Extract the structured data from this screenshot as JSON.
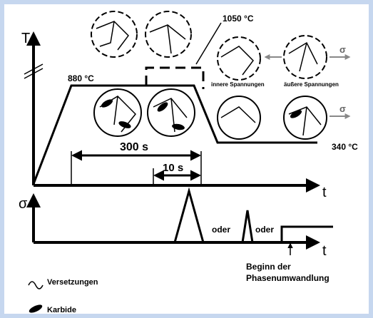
{
  "axes": {
    "temperature": "T",
    "time": "t",
    "stress": "σ",
    "time2": "t"
  },
  "temperatures": {
    "austenitizing": "880 °C",
    "peak": "1050 °C",
    "quench": "340 °C"
  },
  "durations": {
    "long": "300 s",
    "short": "10 s"
  },
  "stresses": {
    "inner": "innere Spannungen",
    "outer": "äußere Spannungen",
    "arrow_top": "σ",
    "arrow_bottom": "σ"
  },
  "alternatives": [
    "oder",
    "oder"
  ],
  "transformation": [
    "Beginn der",
    "Phasenumwandlung"
  ],
  "legend": {
    "dislocations": "Versetzungen",
    "carbides": "Karbide"
  }
}
